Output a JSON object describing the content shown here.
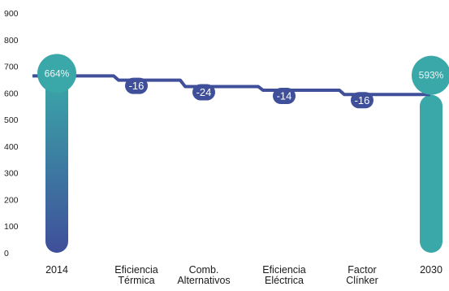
{
  "chart_data": {
    "type": "bar",
    "categories": [
      [
        "2014"
      ],
      [
        "Eficiencia",
        "Térmica"
      ],
      [
        "Comb.",
        "Alternativos"
      ],
      [
        "Eficiencia",
        "Eléctrica"
      ],
      [
        "Factor",
        "Clínker"
      ],
      [
        "2030"
      ]
    ],
    "start": {
      "category": "2014",
      "value": 664,
      "label": "664%"
    },
    "steps": [
      {
        "category": "Eficiencia Térmica",
        "delta": -16,
        "label": "-16"
      },
      {
        "category": "Comb. Alternativos",
        "delta": -24,
        "label": "-24"
      },
      {
        "category": "Eficiencia Eléctrica",
        "delta": -14,
        "label": "-14"
      },
      {
        "category": "Factor Clínker",
        "delta": -16,
        "label": "-16"
      }
    ],
    "end": {
      "category": "2030",
      "value": 593,
      "label": "593%"
    },
    "yticks": [
      "0",
      "100",
      "200",
      "300",
      "400",
      "500",
      "600",
      "700",
      "800",
      "900"
    ],
    "ylim": [
      0,
      900
    ],
    "grid": false,
    "colors": {
      "bar_2014_top": "#3aa8a8",
      "bar_2014_bottom": "#3f4f9a",
      "bar_2030": "#3aa8a8",
      "line": "#3f4f9a",
      "delta_badge": "#3f4f9a",
      "bubble": "#3aa8a8"
    }
  }
}
